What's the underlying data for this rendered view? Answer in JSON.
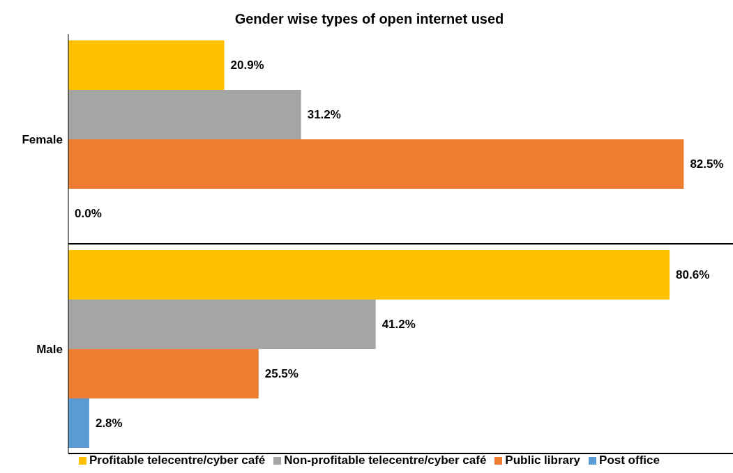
{
  "chart_data": {
    "type": "bar",
    "orientation": "horizontal",
    "title": "Gender wise types of open internet used",
    "categories": [
      "Female",
      "Male"
    ],
    "grid": "y",
    "legend": "bottom",
    "series": [
      {
        "name": "Profitable telecentre/cyber café",
        "color": "#ffc000",
        "values": [
          20.9,
          80.6
        ],
        "value_labels": [
          "20.9%",
          "80.6%"
        ]
      },
      {
        "name": "Non-profitable telecentre/cyber café",
        "color": "#a5a5a5",
        "values": [
          31.2,
          41.2
        ],
        "value_labels": [
          "31.2%",
          "41.2%"
        ]
      },
      {
        "name": "Public library",
        "color": "#ed7d31",
        "values": [
          82.5,
          25.5
        ],
        "value_labels": [
          "82.5%",
          "25.5%"
        ]
      },
      {
        "name": "Post office",
        "color": "#5b9bd5",
        "values": [
          0.0,
          2.8
        ],
        "value_labels": [
          "0.0%",
          "2.8%"
        ]
      }
    ]
  }
}
